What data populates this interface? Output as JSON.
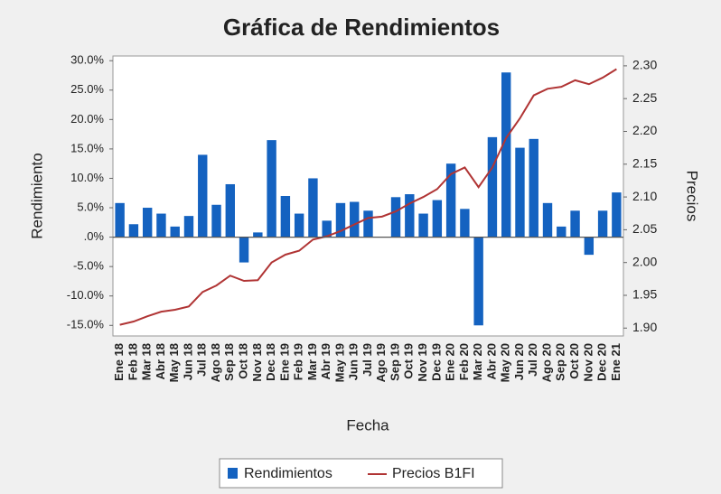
{
  "chart_data": {
    "type": "bar-line",
    "title": "Gráfica de Rendimientos",
    "x_label": "Fecha",
    "y_label": "Rendimiento",
    "y2_label": "Precios",
    "categories": [
      "Ene 18",
      "Feb 18",
      "Mar 18",
      "Abr 18",
      "May 18",
      "Jun 18",
      "Jul 18",
      "Ago 18",
      "Sep 18",
      "Oct 18",
      "Nov 18",
      "Dec 18",
      "Ene 19",
      "Feb 19",
      "Mar 19",
      "Abr 19",
      "May 19",
      "Jun 19",
      "Jul 19",
      "Ago 19",
      "Sep 19",
      "Oct 19",
      "Nov 19",
      "Dec 19",
      "Ene 20",
      "Feb 20",
      "Mar 20",
      "Abr 20",
      "May 20",
      "Jun 20",
      "Jul 20",
      "Ago 20",
      "Sep 20",
      "Oct 20",
      "Nov 20",
      "Dec 20",
      "Ene 21"
    ],
    "series": [
      {
        "name": "Rendimientos",
        "type": "bar",
        "color": "#1462c0",
        "values": [
          5.8,
          2.2,
          5.0,
          4.0,
          1.8,
          3.6,
          14.0,
          5.5,
          9.0,
          -4.3,
          0.8,
          16.5,
          7.0,
          4.0,
          10.0,
          2.8,
          5.8,
          6.0,
          4.5,
          0,
          6.8,
          7.3,
          4.0,
          6.3,
          12.5,
          4.8,
          -15.0,
          17.0,
          28.0,
          15.2,
          16.7,
          5.8,
          1.8,
          4.5,
          -3.0,
          4.5,
          7.6
        ]
      },
      {
        "name": "Precios B1FI",
        "type": "line",
        "axis": "y2",
        "color": "#b03434",
        "values": [
          1.905,
          1.91,
          1.918,
          1.925,
          1.928,
          1.933,
          1.955,
          1.965,
          1.98,
          1.972,
          1.973,
          2.0,
          2.012,
          2.018,
          2.035,
          2.04,
          2.048,
          2.058,
          2.068,
          2.07,
          2.078,
          2.09,
          2.1,
          2.112,
          2.135,
          2.145,
          2.115,
          2.145,
          2.19,
          2.22,
          2.255,
          2.265,
          2.268,
          2.278,
          2.272,
          2.282,
          2.295
        ]
      }
    ],
    "ylim": [
      -16.8,
      30.8
    ],
    "yticks": [
      {
        "value": 30,
        "label": "30.0%"
      },
      {
        "value": 25,
        "label": "25.0%"
      },
      {
        "value": 20,
        "label": "20.0%"
      },
      {
        "value": 15,
        "label": "15.0%"
      },
      {
        "value": 10,
        "label": "10.0%"
      },
      {
        "value": 5,
        "label": "5.0%"
      },
      {
        "value": 0,
        "label": ".0%"
      },
      {
        "value": -5,
        "label": "-5.0%"
      },
      {
        "value": -10,
        "label": "-10.0%"
      },
      {
        "value": -15,
        "label": "-15.0%"
      }
    ],
    "y2lim": [
      1.888,
      2.315
    ],
    "y2ticks": [
      {
        "value": 2.3,
        "label": "2.30"
      },
      2.25,
      {
        "value": 2.2,
        "label": "2.20"
      },
      2.15,
      {
        "value": 2.1,
        "label": "2.10"
      },
      2.05,
      {
        "value": 2.0,
        "label": "2.00"
      },
      1.95,
      {
        "value": 1.9,
        "label": "1.90"
      }
    ],
    "legend": "bottom"
  }
}
